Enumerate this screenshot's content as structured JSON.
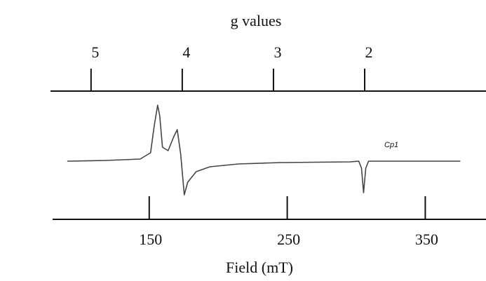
{
  "chart_data": {
    "type": "line",
    "title": "g values",
    "xlabel": "Field (mT)",
    "annotation": "Cp1",
    "xlim": [
      80,
      394
    ],
    "xticks": [
      150,
      250,
      350
    ],
    "x2lim": [
      5.46,
      0.67
    ],
    "x2ticks": [
      5,
      4,
      3,
      2
    ],
    "ylim": [
      -60,
      90
    ],
    "color": "#444444",
    "x": [
      90.6,
      118,
      143.4,
      151,
      153.6,
      156.1,
      157.6,
      159.6,
      163.7,
      167.8,
      170.3,
      172.8,
      175.4,
      177.9,
      184,
      194,
      214.5,
      245,
      295.7,
      301.8,
      303.8,
      305.3,
      306.9,
      308.9,
      326,
      375.4
    ],
    "values": [
      0,
      1,
      3,
      12,
      50,
      80,
      65,
      20,
      15,
      35,
      45,
      10,
      -48,
      -30,
      -15,
      -8,
      -4,
      -2,
      -1,
      0,
      -10,
      -45,
      -10,
      0,
      0,
      0
    ]
  }
}
